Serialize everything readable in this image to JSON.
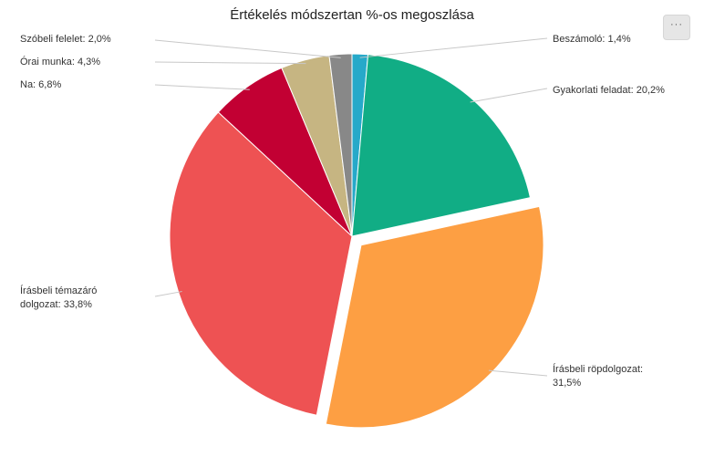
{
  "chart_data": {
    "type": "pie",
    "title": "Értékelés módszertan %-os megoszlása",
    "slices": [
      {
        "name": "Beszámoló",
        "value": 1.4,
        "label_lines": [
          "Beszámoló: 1,4%"
        ],
        "color": "#26a9c9",
        "exploded": false
      },
      {
        "name": "Gyakorlati feladat",
        "value": 20.2,
        "label_lines": [
          "Gyakorlati feladat: 20,2%"
        ],
        "color": "#11ad85",
        "exploded": false
      },
      {
        "name": "Írásbeli röpdolgozat",
        "value": 31.5,
        "label_lines": [
          "Írásbeli röpdolgozat:",
          "31,5%"
        ],
        "color": "#fd9f43",
        "exploded": true
      },
      {
        "name": "Írásbeli témazáró dolgozat",
        "value": 33.8,
        "label_lines": [
          "Írásbeli témazáró",
          "dolgozat: 33,8%"
        ],
        "color": "#ee5253",
        "exploded": false
      },
      {
        "name": "Na",
        "value": 6.8,
        "label_lines": [
          "Na: 6,8%"
        ],
        "color": "#c20033",
        "exploded": false
      },
      {
        "name": "Órai munka",
        "value": 4.3,
        "label_lines": [
          "Órai munka: 4,3%"
        ],
        "color": "#c6b582",
        "exploded": false
      },
      {
        "name": "Szóbeli felelet",
        "value": 2.0,
        "label_lines": [
          "Szóbeli felelet: 2,0%"
        ],
        "color": "#888888",
        "exploded": false
      }
    ],
    "start_angle": "top",
    "direction": "clockwise"
  },
  "menu": {
    "label": "···"
  }
}
